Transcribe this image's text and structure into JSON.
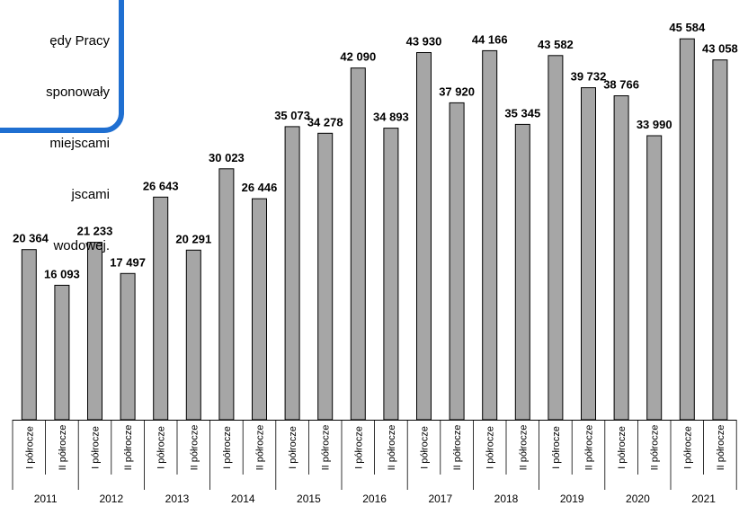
{
  "callout": {
    "lines": [
      "ędy Pracy",
      "sponowały",
      "miejscami",
      "jscami",
      "wodowej."
    ],
    "border_color": "#1f6fd1"
  },
  "chart_data": {
    "type": "bar",
    "bar_color": "#a6a6a6",
    "years": [
      "2011",
      "2012",
      "2013",
      "2014",
      "2015",
      "2016",
      "2017",
      "2018",
      "2019",
      "2020",
      "2021"
    ],
    "half_labels": [
      "I półrocze",
      "II półrocze"
    ],
    "values": [
      20364,
      16093,
      21233,
      17497,
      26643,
      20291,
      30023,
      26446,
      35073,
      34278,
      42090,
      34893,
      43930,
      37920,
      44166,
      35345,
      43582,
      39732,
      38766,
      33990,
      45584,
      43058
    ],
    "value_labels": [
      "20 364",
      "16 093",
      "21 233",
      "17 497",
      "26 643",
      "20 291",
      "30 023",
      "26 446",
      "35 073",
      "34 278",
      "42 090",
      "34 893",
      "43 930",
      "37 920",
      "44 166",
      "35 345",
      "43 582",
      "39 732",
      "38 766",
      "33 990",
      "45 584",
      "43 058"
    ],
    "ylim": [
      0,
      47000
    ],
    "grid": false
  }
}
